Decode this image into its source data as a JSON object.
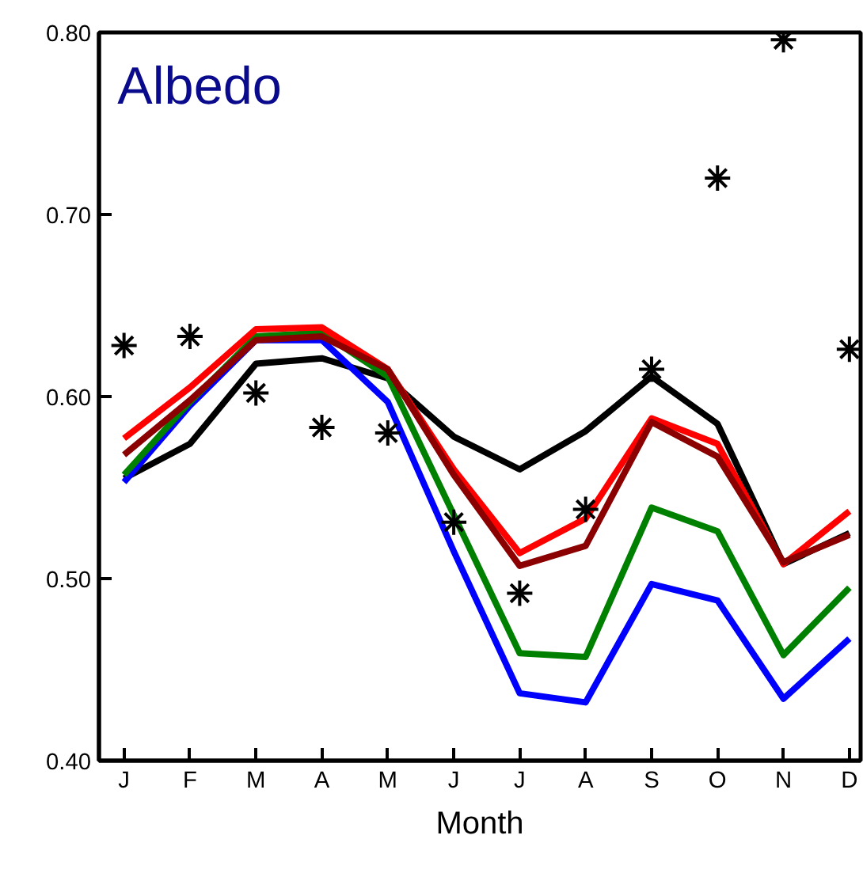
{
  "chart_data": {
    "type": "line",
    "xlabel": "Month",
    "annotations": [
      "Albedo"
    ],
    "categories": [
      "J",
      "F",
      "M",
      "A",
      "M",
      "J",
      "J",
      "A",
      "S",
      "O",
      "N",
      "D"
    ],
    "ylim": [
      0.4,
      0.8
    ],
    "yticks": [
      {
        "value": 0.4,
        "label": "0.40"
      },
      {
        "value": 0.5,
        "label": "0.50"
      },
      {
        "value": 0.6,
        "label": "0.60"
      },
      {
        "value": 0.7,
        "label": "0.70"
      },
      {
        "value": 0.8,
        "label": "0.80"
      }
    ],
    "grid": false,
    "line_style": "solid",
    "series": [
      {
        "color": "#000000",
        "values": [
          0.555,
          0.574,
          0.618,
          0.621,
          0.61,
          0.578,
          0.56,
          0.581,
          0.611,
          0.585,
          0.508,
          0.525
        ]
      },
      {
        "color": "#0000ff",
        "values": [
          0.553,
          0.595,
          0.631,
          0.631,
          0.597,
          0.515,
          0.437,
          0.432,
          0.497,
          0.488,
          0.434,
          0.467
        ]
      },
      {
        "color": "#008000",
        "values": [
          0.557,
          0.597,
          0.633,
          0.635,
          0.611,
          0.535,
          0.459,
          0.457,
          0.539,
          0.526,
          0.458,
          0.495
        ]
      },
      {
        "color": "#ff0000",
        "values": [
          0.577,
          0.605,
          0.637,
          0.638,
          0.615,
          0.56,
          0.514,
          0.533,
          0.588,
          0.574,
          0.508,
          0.537
        ]
      },
      {
        "color": "#8b0000",
        "values": [
          0.568,
          0.598,
          0.631,
          0.633,
          0.615,
          0.557,
          0.507,
          0.518,
          0.586,
          0.567,
          0.509,
          0.524
        ]
      },
      {
        "type": "scatter",
        "marker": "cross",
        "color": "#000000",
        "values": [
          0.628,
          0.633,
          0.602,
          0.583,
          0.58,
          0.531,
          0.492,
          0.538,
          0.615,
          0.72,
          0.796,
          0.626
        ]
      }
    ]
  }
}
